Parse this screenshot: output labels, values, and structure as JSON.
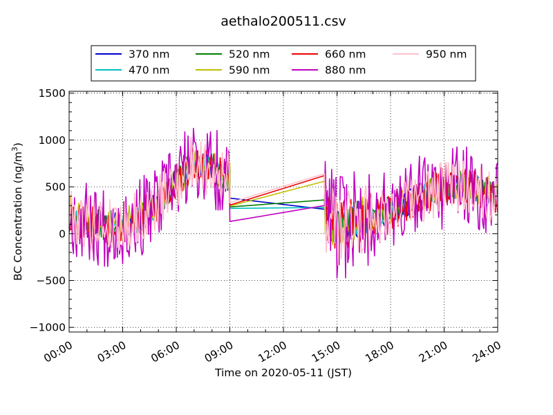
{
  "chart_data": {
    "type": "line",
    "title": "aethalo200511.csv",
    "xlabel": "Time on 2020-05-11 (JST)",
    "ylabel_main": "BC Concentration (ng/m",
    "ylabel_sup": "3",
    "ylabel_tail": ")",
    "x_unit": "hours",
    "xlim": [
      0,
      24
    ],
    "ylim": [
      -1050,
      1520
    ],
    "x_ticks": [
      0,
      3,
      6,
      9,
      12,
      15,
      18,
      21,
      24
    ],
    "x_tick_labels": [
      "00:00",
      "03:00",
      "06:00",
      "09:00",
      "12:00",
      "15:00",
      "18:00",
      "21:00",
      "24:00"
    ],
    "y_ticks": [
      -1000,
      -500,
      0,
      500,
      1000,
      1500
    ],
    "y_tick_labels": [
      "−1000",
      "−500",
      "0",
      "500",
      "1000",
      "1500"
    ],
    "grid": "dotted",
    "legend_position": "top-center, 4 columns",
    "series": [
      {
        "name": "370 nm",
        "color": "#0000cc",
        "noise": 0.55,
        "gap_from": 380,
        "gap_to": 260,
        "seed": 11
      },
      {
        "name": "470 nm",
        "color": "#00bfbf",
        "noise": 0.55,
        "gap_from": 270,
        "gap_to": 280,
        "seed": 23
      },
      {
        "name": "520 nm",
        "color": "#008000",
        "noise": 0.6,
        "gap_from": 285,
        "gap_to": 360,
        "seed": 37
      },
      {
        "name": "590 nm",
        "color": "#bfbf00",
        "noise": 0.7,
        "gap_from": 295,
        "gap_to": 560,
        "seed": 41
      },
      {
        "name": "660 nm",
        "color": "#ee0000",
        "noise": 0.8,
        "gap_from": 305,
        "gap_to": 620,
        "seed": 53
      },
      {
        "name": "880 nm",
        "color": "#bf00bf",
        "noise": 1.7,
        "gap_from": 130,
        "gap_to": 300,
        "seed": 67
      },
      {
        "name": "950 nm",
        "color": "#ffc0cb",
        "noise": 1.15,
        "gap_from": 330,
        "gap_to": 640,
        "seed": 79
      }
    ],
    "gap_hours": [
      9.0,
      14.3
    ],
    "baseline_profile": [
      [
        0,
        220
      ],
      [
        1,
        120
      ],
      [
        2,
        90
      ],
      [
        3,
        100
      ],
      [
        4,
        160
      ],
      [
        5,
        320
      ],
      [
        6,
        560
      ],
      [
        7,
        760
      ],
      [
        8,
        700
      ],
      [
        8.9,
        600
      ],
      [
        14.3,
        200
      ],
      [
        15,
        50
      ],
      [
        16,
        150
      ],
      [
        17,
        180
      ],
      [
        18,
        250
      ],
      [
        19,
        330
      ],
      [
        20,
        420
      ],
      [
        21,
        500
      ],
      [
        22,
        520
      ],
      [
        23,
        470
      ],
      [
        24,
        380
      ]
    ]
  }
}
